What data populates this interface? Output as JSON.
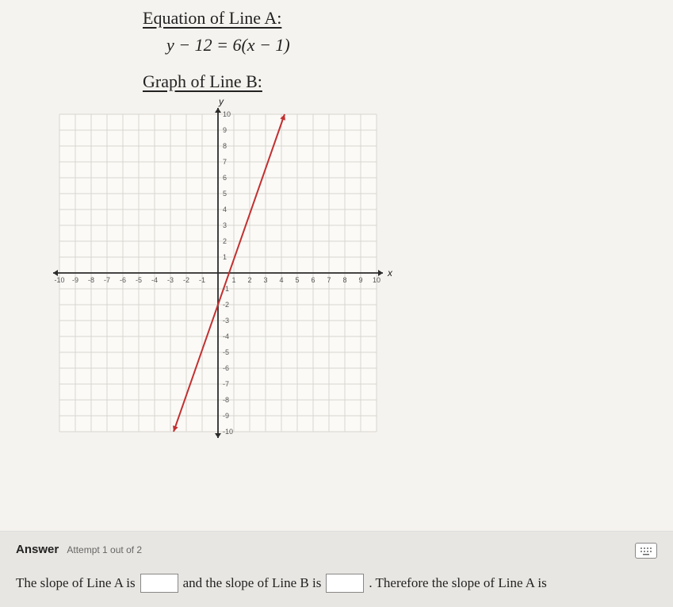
{
  "headingA": "Equation of Line A:",
  "equationA": "y − 12 = 6(x − 1)",
  "headingB": "Graph of Line B:",
  "graph": {
    "type": "line",
    "xlim": [
      -10,
      10
    ],
    "ylim": [
      -10,
      10
    ],
    "xtick_step": 1,
    "ytick_step": 1,
    "ytick_labels_right": [
      "10",
      "9",
      "8",
      "7",
      "6",
      "5",
      "4",
      "3",
      "2",
      "1",
      "-1",
      "-2",
      "-3",
      "-4",
      "-5",
      "-6",
      "-7",
      "-8",
      "-9",
      "-10"
    ],
    "xtick_labels": [
      "-10",
      "-9",
      "-8",
      "-7",
      "-6",
      "-5",
      "-4",
      "-3",
      "-2",
      "-1",
      "1",
      "2",
      "3",
      "4",
      "5",
      "6",
      "7",
      "8",
      "9",
      "10"
    ],
    "x_axis_label": "x",
    "y_axis_label": "y",
    "background_color": "#fbfaf7",
    "grid_color": "#d9d6cf",
    "axis_color": "#2b2b2b",
    "line_color": "#c23030",
    "line_width": 2,
    "line_points": [
      [
        -2.8,
        -10
      ],
      [
        4.2,
        10
      ]
    ],
    "tick_fontsize": 9,
    "axis_label_fontsize": 12,
    "arrow_size": 6
  },
  "answer": {
    "title": "Answer",
    "attempt": "Attempt 1 out of 2",
    "text1": "The slope of Line A is",
    "text2": "and the slope of Line B is",
    "text3": ". Therefore the slope of Line A is",
    "blank1": "",
    "blank2": ""
  },
  "keypad_label": "⠿"
}
